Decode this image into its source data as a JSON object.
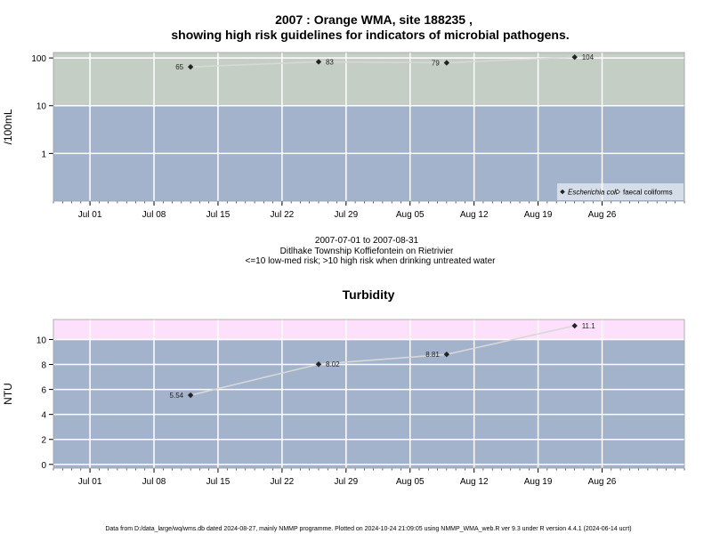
{
  "header": {
    "title_line1": "2007 : Orange WMA, site 188235 ,",
    "title_line2": "showing high risk guidelines for indicators of microbial pathogens."
  },
  "caption": {
    "date_range": "2007-07-01 to 2007-08-31",
    "site_name": "Ditlhake Township Koffiefontein on Rietrivier",
    "risk_note": "<=10 low-med risk; >10 high risk when drinking untreated water"
  },
  "footer": {
    "text": "Data from D:/data_large/wq/wms.db dated 2024-08-27, mainly NMMP programme. Plotted on 2024-10-24 21:09:05 using NMMP_WMA_web.R ver 9.3 under R version 4.4.1 (2024-06-14 ucrt)"
  },
  "colors": {
    "low_band": "#a3b3cc",
    "high_band_microbial": "#c4cec4",
    "high_band_turbidity": "#fde0fc",
    "grid": "#ffffff",
    "line": "#d8d8d8",
    "point": "#222222"
  },
  "chart_data": [
    {
      "type": "line",
      "title": "",
      "xlabel": "",
      "ylabel": "/100mL",
      "yscale": "log",
      "ylim": [
        0.1,
        130
      ],
      "xlim": [
        "2007-06-27",
        "2007-09-04"
      ],
      "x_ticks": [
        "Jul 01",
        "Jul 08",
        "Jul 15",
        "Jul 22",
        "Jul 29",
        "Aug 05",
        "Aug 12",
        "Aug 19",
        "Aug 26"
      ],
      "x_tick_dates": [
        "2007-07-01",
        "2007-07-08",
        "2007-07-15",
        "2007-07-22",
        "2007-07-29",
        "2007-08-05",
        "2007-08-12",
        "2007-08-19",
        "2007-08-26"
      ],
      "y_ticks": [
        "1",
        "10",
        "100"
      ],
      "y_tick_values": [
        1,
        10,
        100
      ],
      "threshold": 10,
      "grid": true,
      "legend_position": "bottom-right",
      "legend": [
        {
          "label": "Escherichia coli",
          "italic": true,
          "marker": "filled-diamond"
        },
        {
          "label": "faecal coliforms",
          "italic": false,
          "marker": "open-diamond"
        }
      ],
      "series": [
        {
          "name": "Escherichia coli",
          "x": [
            "2007-07-12",
            "2007-07-26",
            "2007-08-09",
            "2007-08-23"
          ],
          "values": [
            65,
            83,
            79,
            104
          ],
          "labels": [
            "65",
            "83",
            "79",
            "104"
          ]
        }
      ]
    },
    {
      "type": "line",
      "title": "Turbidity",
      "xlabel": "",
      "ylabel": "NTU",
      "yscale": "linear",
      "ylim": [
        -0.3,
        11.6
      ],
      "xlim": [
        "2007-06-27",
        "2007-09-04"
      ],
      "x_ticks": [
        "Jul 01",
        "Jul 08",
        "Jul 15",
        "Jul 22",
        "Jul 29",
        "Aug 05",
        "Aug 12",
        "Aug 19",
        "Aug 26"
      ],
      "x_tick_dates": [
        "2007-07-01",
        "2007-07-08",
        "2007-07-15",
        "2007-07-22",
        "2007-07-29",
        "2007-08-05",
        "2007-08-12",
        "2007-08-19",
        "2007-08-26"
      ],
      "y_ticks": [
        "0",
        "2",
        "4",
        "6",
        "8",
        "10"
      ],
      "y_tick_values": [
        0,
        2,
        4,
        6,
        8,
        10
      ],
      "threshold": 10,
      "grid": true,
      "series": [
        {
          "name": "",
          "x": [
            "2007-07-12",
            "2007-07-26",
            "2007-08-09",
            "2007-08-23"
          ],
          "values": [
            5.54,
            8.02,
            8.81,
            11.1
          ],
          "labels": [
            "5.54",
            "8.02",
            "8.81",
            "11.1"
          ]
        }
      ]
    }
  ]
}
